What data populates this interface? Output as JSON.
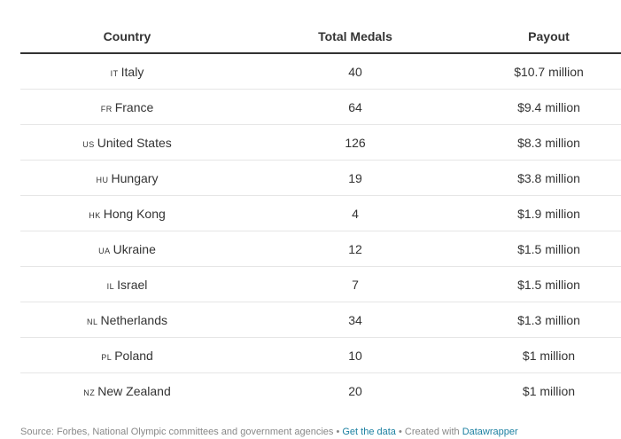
{
  "table": {
    "headers": {
      "country": "Country",
      "medals": "Total Medals",
      "payout": "Payout"
    },
    "rows": [
      {
        "code": "IT",
        "country": "Italy",
        "medals": "40",
        "payout": "$10.7 million"
      },
      {
        "code": "FR",
        "country": "France",
        "medals": "64",
        "payout": "$9.4 million"
      },
      {
        "code": "US",
        "country": "United States",
        "medals": "126",
        "payout": "$8.3 million"
      },
      {
        "code": "HU",
        "country": "Hungary",
        "medals": "19",
        "payout": "$3.8 million"
      },
      {
        "code": "HK",
        "country": "Hong Kong",
        "medals": "4",
        "payout": "$1.9 million"
      },
      {
        "code": "UA",
        "country": "Ukraine",
        "medals": "12",
        "payout": "$1.5 million"
      },
      {
        "code": "IL",
        "country": "Israel",
        "medals": "7",
        "payout": "$1.5 million"
      },
      {
        "code": "NL",
        "country": "Netherlands",
        "medals": "34",
        "payout": "$1.3 million"
      },
      {
        "code": "PL",
        "country": "Poland",
        "medals": "10",
        "payout": "$1 million"
      },
      {
        "code": "NZ",
        "country": "New Zealand",
        "medals": "20",
        "payout": "$1 million"
      }
    ]
  },
  "chart_data": {
    "type": "table",
    "columns": [
      "Country",
      "Total Medals",
      "Payout"
    ],
    "rows": [
      [
        "Italy",
        40,
        "$10.7 million"
      ],
      [
        "France",
        64,
        "$9.4 million"
      ],
      [
        "United States",
        126,
        "$8.3 million"
      ],
      [
        "Hungary",
        19,
        "$3.8 million"
      ],
      [
        "Hong Kong",
        4,
        "$1.9 million"
      ],
      [
        "Ukraine",
        12,
        "$1.5 million"
      ],
      [
        "Israel",
        7,
        "$1.5 million"
      ],
      [
        "Netherlands",
        34,
        "$1.3 million"
      ],
      [
        "Poland",
        10,
        "$1 million"
      ],
      [
        "New Zealand",
        20,
        "$1 million"
      ]
    ]
  },
  "footer": {
    "source": "Source: Forbes, National Olympic committees and government agencies",
    "sep1": " • ",
    "get_data": "Get the data",
    "sep2": " • Created with ",
    "tool": "Datawrapper"
  },
  "colors": {
    "text": "#333333",
    "rule": "#333333",
    "row_divider": "#e6e6e6",
    "footer_text": "#888888",
    "link": "#1d81a2"
  }
}
